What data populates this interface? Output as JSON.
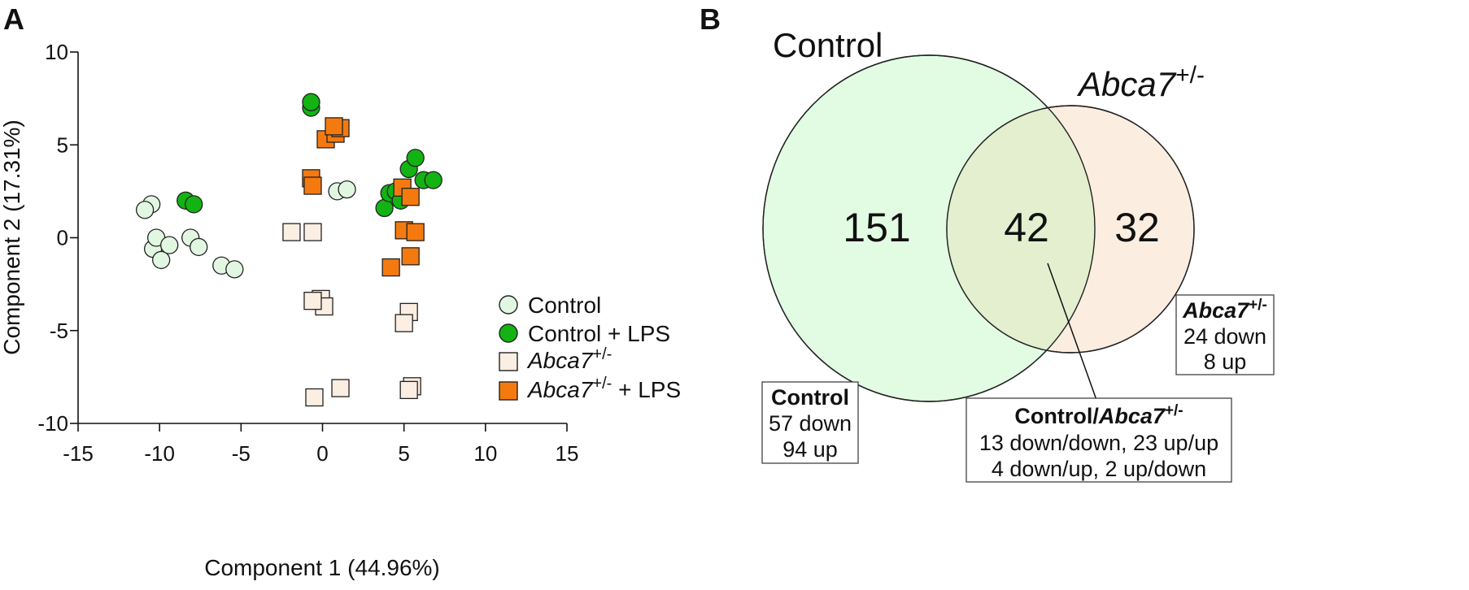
{
  "panel_labels": {
    "a": "A",
    "b": "B"
  },
  "colors": {
    "control": "#e2f7e2",
    "control_lps": "#12b312",
    "abca7": "#fbeee2",
    "abca7_lps": "#f47a10",
    "venn_control": "#e2fce4",
    "venn_abca7": "#fbeee1",
    "venn_overlap": "#e3efcf"
  },
  "chart_data": [
    {
      "type": "scatter",
      "title": "",
      "xlabel": "Component 1 (44.96%)",
      "ylabel": "Component 2 (17.31%)",
      "xlim": [
        -15,
        15
      ],
      "ylim": [
        -10,
        10
      ],
      "xticks": [
        -15,
        -10,
        -5,
        0,
        5,
        10,
        15
      ],
      "yticks": [
        10,
        5,
        0,
        -5,
        -10
      ],
      "grid": false,
      "legend_position": "bottom-right",
      "series": [
        {
          "name": "Control",
          "marker": "circle",
          "points": [
            [
              -10.5,
              1.8
            ],
            [
              -10.9,
              1.5
            ],
            [
              -10.4,
              -0.6
            ],
            [
              -10.2,
              0.0
            ],
            [
              -9.9,
              -1.2
            ],
            [
              -9.4,
              -0.4
            ],
            [
              -8.1,
              0.0
            ],
            [
              -7.6,
              -0.5
            ],
            [
              -6.2,
              -1.5
            ],
            [
              -5.4,
              -1.7
            ],
            [
              0.9,
              2.5
            ],
            [
              1.5,
              2.6
            ]
          ]
        },
        {
          "name": "Control + LPS",
          "marker": "circle",
          "points": [
            [
              -8.4,
              2.0
            ],
            [
              -7.9,
              1.8
            ],
            [
              -0.7,
              7.0
            ],
            [
              -0.7,
              7.3
            ],
            [
              3.8,
              1.6
            ],
            [
              4.1,
              2.4
            ],
            [
              4.5,
              2.5
            ],
            [
              4.8,
              2.0
            ],
            [
              5.3,
              3.7
            ],
            [
              5.7,
              4.3
            ],
            [
              6.2,
              3.1
            ],
            [
              6.8,
              3.1
            ]
          ]
        },
        {
          "name": "Abca7",
          "sup": "+/-",
          "suffix": "",
          "marker": "square",
          "points": [
            [
              -1.9,
              0.3
            ],
            [
              -0.6,
              0.3
            ],
            [
              -0.1,
              -3.3
            ],
            [
              0.1,
              -3.7
            ],
            [
              -0.6,
              -3.4
            ],
            [
              -0.5,
              -8.6
            ],
            [
              1.1,
              -8.1
            ],
            [
              5.3,
              -4.0
            ],
            [
              5.0,
              -4.6
            ],
            [
              5.5,
              -8.0
            ],
            [
              5.3,
              -8.2
            ]
          ]
        },
        {
          "name": "Abca7",
          "sup": "+/-",
          "suffix": " + LPS",
          "marker": "square",
          "points": [
            [
              0.2,
              5.3
            ],
            [
              0.8,
              5.6
            ],
            [
              1.1,
              5.9
            ],
            [
              0.7,
              6.0
            ],
            [
              -0.7,
              3.2
            ],
            [
              -0.6,
              2.8
            ],
            [
              4.9,
              2.7
            ],
            [
              5.4,
              2.2
            ],
            [
              5.0,
              0.4
            ],
            [
              5.7,
              0.3
            ],
            [
              4.2,
              -1.6
            ],
            [
              5.4,
              -1.0
            ]
          ]
        }
      ]
    },
    {
      "type": "venn",
      "sets": [
        {
          "name": "Control",
          "sup": "",
          "only": 151
        },
        {
          "name": "Abca7",
          "sup": "+/-",
          "only": 32
        }
      ],
      "intersection": 42,
      "boxes": {
        "control": {
          "title": "Control",
          "lines": [
            "57 down",
            "94 up"
          ]
        },
        "abca7": {
          "title": "Abca7",
          "sup": "+/-",
          "lines": [
            "24 down",
            "8 up"
          ]
        },
        "overlap": {
          "title_prefix": "Control/",
          "title": "Abca7",
          "sup": "+/-",
          "lines": [
            "13 down/down, 23 up/up",
            "4 down/up, 2 up/down"
          ]
        }
      }
    }
  ]
}
